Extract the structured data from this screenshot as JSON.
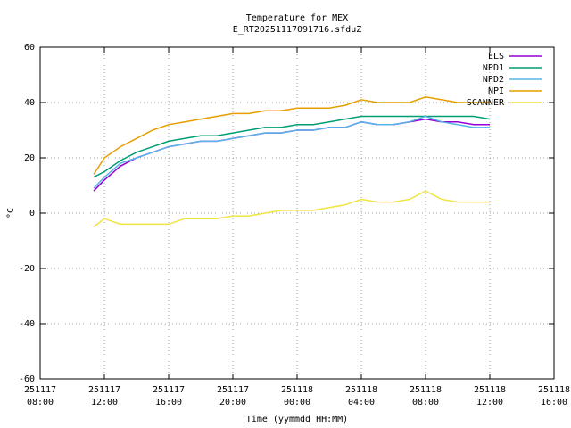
{
  "chart_data": {
    "type": "line",
    "title": "Temperature for MEX",
    "subtitle": "E_RT20251117091716.sfduZ",
    "x_label": "Time (yymmdd HH:MM)",
    "y_label": "°C",
    "x": [
      "251117 11:20",
      "251117 12:00",
      "251117 13:00",
      "251117 14:00",
      "251117 15:00",
      "251117 16:00",
      "251117 17:00",
      "251117 18:00",
      "251117 19:00",
      "251117 20:00",
      "251117 21:00",
      "251117 22:00",
      "251117 23:00",
      "251118 00:00",
      "251118 01:00",
      "251118 02:00",
      "251118 03:00",
      "251118 04:00",
      "251118 05:00",
      "251118 06:00",
      "251118 07:00",
      "251118 08:00",
      "251118 09:00",
      "251118 10:00",
      "251118 11:00",
      "251118 12:00"
    ],
    "series": [
      {
        "name": "ELS",
        "color": "#9400d3",
        "values": [
          8,
          12,
          17,
          20,
          22,
          24,
          25,
          26,
          26,
          27,
          28,
          29,
          29,
          30,
          30,
          31,
          31,
          33,
          32,
          32,
          33,
          34,
          33,
          33,
          32,
          32
        ]
      },
      {
        "name": "NPD1",
        "color": "#009e73",
        "values": [
          13,
          15,
          19,
          22,
          24,
          26,
          27,
          28,
          28,
          29,
          30,
          31,
          31,
          32,
          32,
          33,
          34,
          35,
          35,
          35,
          35,
          35,
          35,
          35,
          35,
          34
        ]
      },
      {
        "name": "NPD2",
        "color": "#56b4e9",
        "values": [
          9,
          13,
          18,
          20,
          22,
          24,
          25,
          26,
          26,
          27,
          28,
          29,
          29,
          30,
          30,
          31,
          31,
          33,
          32,
          32,
          33,
          35,
          33,
          32,
          31,
          31
        ]
      },
      {
        "name": "NPI",
        "color": "#e69f00",
        "values": [
          14,
          20,
          24,
          27,
          30,
          32,
          33,
          34,
          35,
          36,
          36,
          37,
          37,
          38,
          38,
          38,
          39,
          41,
          40,
          40,
          40,
          42,
          41,
          40,
          40,
          40
        ]
      },
      {
        "name": "SCANNER",
        "color": "#f0e442",
        "values": [
          -5,
          -2,
          -4,
          -4,
          -4,
          -4,
          -2,
          -2,
          -2,
          -1,
          -1,
          0,
          1,
          1,
          1,
          2,
          3,
          5,
          4,
          4,
          5,
          8,
          5,
          4,
          4,
          4
        ]
      }
    ],
    "xlim": [
      "251117 08:00",
      "251118 16:00"
    ],
    "xticks": [
      {
        "value": "251117 08:00",
        "label": [
          "251117",
          "08:00"
        ]
      },
      {
        "value": "251117 12:00",
        "label": [
          "251117",
          "12:00"
        ]
      },
      {
        "value": "251117 16:00",
        "label": [
          "251117",
          "16:00"
        ]
      },
      {
        "value": "251117 20:00",
        "label": [
          "251117",
          "20:00"
        ]
      },
      {
        "value": "251118 00:00",
        "label": [
          "251118",
          "00:00"
        ]
      },
      {
        "value": "251118 04:00",
        "label": [
          "251118",
          "04:00"
        ]
      },
      {
        "value": "251118 08:00",
        "label": [
          "251118",
          "08:00"
        ]
      },
      {
        "value": "251118 12:00",
        "label": [
          "251118",
          "12:00"
        ]
      },
      {
        "value": "251118 16:00",
        "label": [
          "251118",
          "16:00"
        ]
      }
    ],
    "ylim": [
      -60,
      60
    ],
    "yticks": [
      -60,
      -40,
      -20,
      0,
      20,
      40,
      60
    ],
    "grid": true,
    "legend": "top-right"
  }
}
